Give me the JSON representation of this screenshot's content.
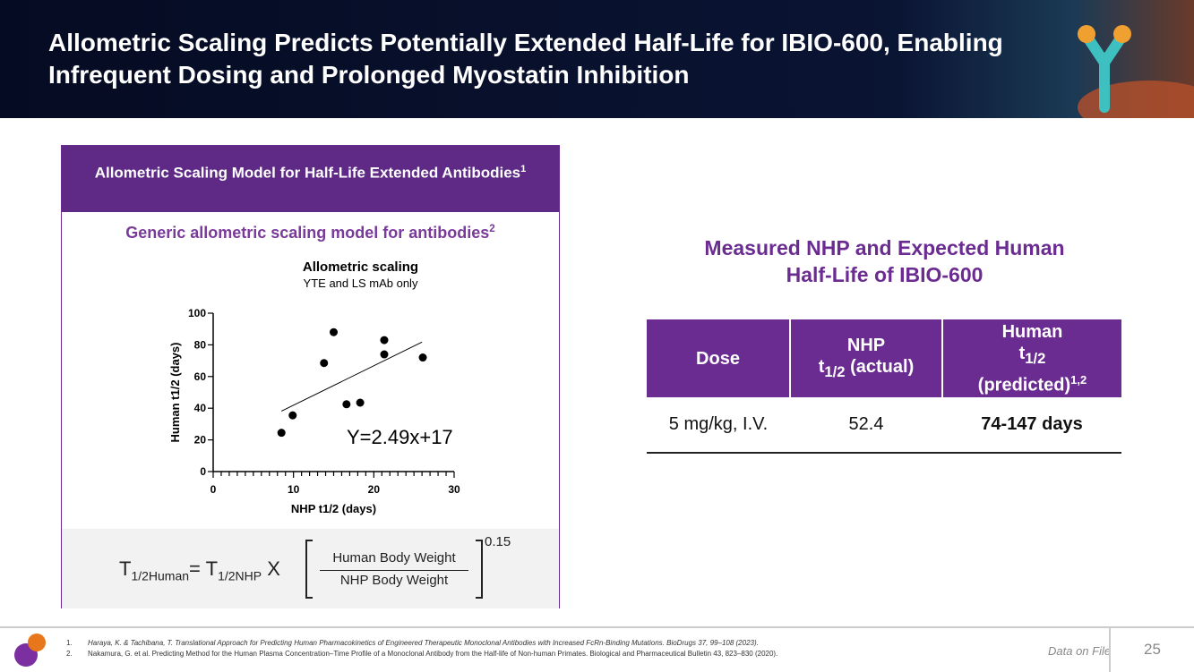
{
  "header": {
    "title": "Allometric Scaling Predicts Potentially Extended Half-Life for IBIO-600, Enabling Infrequent Dosing and Prolonged Myostatin Inhibition"
  },
  "left_panel": {
    "title": "Allometric Scaling Model for Half-Life Extended Antibodies",
    "title_sup": "1",
    "subtitle": "Generic allometric scaling model for antibodies",
    "subtitle_sup": "2",
    "formula": {
      "lhs": "T",
      "lhs_sub": "1/2Human",
      "eq": "= T",
      "rhs_sub": "1/2NHP",
      "times": "X",
      "numerator": "Human Body Weight",
      "denominator": "NHP Body Weight",
      "exponent": "0.15"
    }
  },
  "chart_data": {
    "type": "scatter",
    "title": "Allometric scaling",
    "subtitle": "YTE and  LS mAb only",
    "xlabel": "NHP t1/2 (days)",
    "ylabel": "Human t1/2 (days)",
    "xlim": [
      0,
      30
    ],
    "ylim": [
      0,
      100
    ],
    "xticks": [
      0,
      10,
      20,
      30
    ],
    "yticks": [
      0,
      20,
      40,
      60,
      80,
      100
    ],
    "points": [
      [
        8.5,
        24.5
      ],
      [
        9.9,
        35.5
      ],
      [
        13.8,
        68.5
      ],
      [
        15,
        88
      ],
      [
        16.6,
        42.5
      ],
      [
        18.3,
        43.5
      ],
      [
        21.3,
        83
      ],
      [
        21.3,
        74
      ],
      [
        26.1,
        72
      ]
    ],
    "fit": {
      "slope": 2.49,
      "intercept": 17,
      "x_range": [
        8.5,
        26
      ],
      "label": "Y=2.49x+17"
    },
    "grid": false
  },
  "right_panel": {
    "title": "Measured NHP and Expected Human Half-Life of IBIO-600",
    "table": {
      "headers": [
        {
          "main": "Dose"
        },
        {
          "main": "NHP",
          "t": "t",
          "sub": "1/2",
          "rest": " (actual)"
        },
        {
          "main": "Human",
          "t": "t",
          "sub": "1/2",
          "rest": "(predicted)",
          "sup": "1,2"
        }
      ],
      "rows": [
        [
          "5 mg/kg, I.V.",
          "52.4",
          "74-147 days"
        ]
      ]
    }
  },
  "footer": {
    "refs": [
      "Haraya, K. & Tachibana, T. Translational Approach for Predicting Human Pharmacokinetics of Engineered Therapeutic Monoclonal Antibodies with Increased FcRn-Binding Mutations. BioDrugs 37, 99–108 (2023).",
      "Nakamura, G. et al. Predicting Method for the Human Plasma Concentration–Time Profile of a Monoclonal Antibody from the Half-life of Non-human Primates. Biological and Pharmaceutical Bulletin 43, 823–830 (2020)."
    ],
    "ref_nums": [
      "1.",
      "2."
    ],
    "data_on_file": "Data on File",
    "page": "25"
  },
  "colors": {
    "purple": "#6b2c91",
    "navy": "#050b22"
  }
}
